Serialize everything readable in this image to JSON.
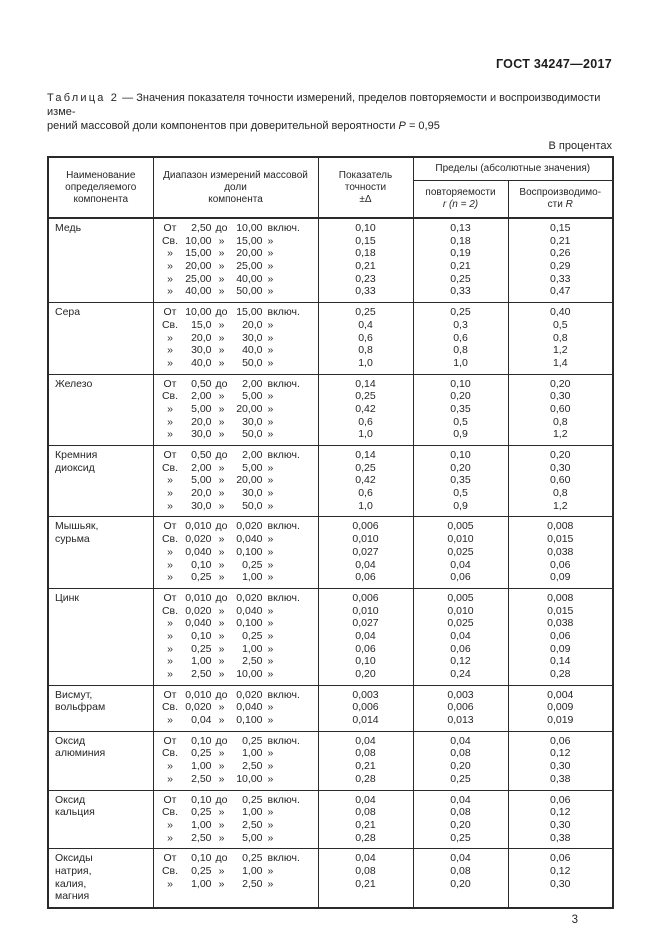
{
  "header": {
    "doc_number": "ГОСТ 34247—2017"
  },
  "caption": {
    "label": "Таблица 2",
    "line1": "— Значения показателя точности измерений, пределов повторяемости и воспроизводимости изме-",
    "line2": "рений массовой доли компонентов при доверительной вероятности",
    "p_symbol": "P",
    "p_value": "= 0,95"
  },
  "units_note": "В процентах",
  "page_number": "3",
  "table": {
    "headers": {
      "component": "Наименование\nопределяемого\nкомпонента",
      "range": "Диапазон измерений массовой доли\nкомпонента",
      "accuracy": "Показатель\nточности\n±Δ",
      "limits_group": "Пределы (абсолютные значения)",
      "repeatability_line1": "повторяемости",
      "repeatability_line2": "r (n = 2)",
      "reproducibility_text": "Воспроизводимо-\nсти",
      "reproducibility_symbol": "R"
    },
    "rows": [
      {
        "name": "Медь",
        "lines": [
          {
            "range": [
              "От",
              "2,50",
              "до",
              "10,00",
              "включ."
            ],
            "acc": "0,10",
            "rep": "0,13",
            "repr": "0,15"
          },
          {
            "range": [
              "Св.",
              "10,00",
              "»",
              "15,00",
              "»"
            ],
            "acc": "0,15",
            "rep": "0,18",
            "repr": "0,21"
          },
          {
            "range": [
              "»",
              "15,00",
              "»",
              "20,00",
              "»"
            ],
            "acc": "0,18",
            "rep": "0,19",
            "repr": "0,26"
          },
          {
            "range": [
              "»",
              "20,00",
              "»",
              "25,00",
              "»"
            ],
            "acc": "0,21",
            "rep": "0,21",
            "repr": "0,29"
          },
          {
            "range": [
              "»",
              "25,00",
              "»",
              "40,00",
              "»"
            ],
            "acc": "0,23",
            "rep": "0,25",
            "repr": "0,33"
          },
          {
            "range": [
              "»",
              "40,00",
              "»",
              "50,00",
              "»"
            ],
            "acc": "0,33",
            "rep": "0,33",
            "repr": "0,47"
          }
        ]
      },
      {
        "name": "Сера",
        "lines": [
          {
            "range": [
              "От",
              "10,00",
              "до",
              "15,00",
              "включ."
            ],
            "acc": "0,25",
            "rep": "0,25",
            "repr": "0,40"
          },
          {
            "range": [
              "Св.",
              "15,0",
              "»",
              "20,0",
              "»"
            ],
            "acc": "0,4",
            "rep": "0,3",
            "repr": "0,5"
          },
          {
            "range": [
              "»",
              "20,0",
              "»",
              "30,0",
              "»"
            ],
            "acc": "0,6",
            "rep": "0,6",
            "repr": "0,8"
          },
          {
            "range": [
              "»",
              "30,0",
              "»",
              "40,0",
              "»"
            ],
            "acc": "0,8",
            "rep": "0,8",
            "repr": "1,2"
          },
          {
            "range": [
              "»",
              "40,0",
              "»",
              "50,0",
              "»"
            ],
            "acc": "1,0",
            "rep": "1,0",
            "repr": "1,4"
          }
        ]
      },
      {
        "name": "Железо",
        "lines": [
          {
            "range": [
              "От",
              "0,50",
              "до",
              "2,00",
              "включ."
            ],
            "acc": "0,14",
            "rep": "0,10",
            "repr": "0,20"
          },
          {
            "range": [
              "Св.",
              "2,00",
              "»",
              "5,00",
              "»"
            ],
            "acc": "0,25",
            "rep": "0,20",
            "repr": "0,30"
          },
          {
            "range": [
              "»",
              "5,00",
              "»",
              "20,00",
              "»"
            ],
            "acc": "0,42",
            "rep": "0,35",
            "repr": "0,60"
          },
          {
            "range": [
              "»",
              "20,0",
              "»",
              "30,0",
              "»"
            ],
            "acc": "0,6",
            "rep": "0,5",
            "repr": "0,8"
          },
          {
            "range": [
              "»",
              "30,0",
              "»",
              "50,0",
              "»"
            ],
            "acc": "1,0",
            "rep": "0,9",
            "repr": "1,2"
          }
        ]
      },
      {
        "name": "Кремния\nдиоксид",
        "lines": [
          {
            "range": [
              "От",
              "0,50",
              "до",
              "2,00",
              "включ."
            ],
            "acc": "0,14",
            "rep": "0,10",
            "repr": "0,20"
          },
          {
            "range": [
              "Св.",
              "2,00",
              "»",
              "5,00",
              "»"
            ],
            "acc": "0,25",
            "rep": "0,20",
            "repr": "0,30"
          },
          {
            "range": [
              "»",
              "5,00",
              "»",
              "20,00",
              "»"
            ],
            "acc": "0,42",
            "rep": "0,35",
            "repr": "0,60"
          },
          {
            "range": [
              "»",
              "20,0",
              "»",
              "30,0",
              "»"
            ],
            "acc": "0,6",
            "rep": "0,5",
            "repr": "0,8"
          },
          {
            "range": [
              "»",
              "30,0",
              "»",
              "50,0",
              "»"
            ],
            "acc": "1,0",
            "rep": "0,9",
            "repr": "1,2"
          }
        ]
      },
      {
        "name": "Мышьяк,\nсурьма",
        "lines": [
          {
            "range": [
              "От",
              "0,010",
              "до",
              "0,020",
              "включ."
            ],
            "acc": "0,006",
            "rep": "0,005",
            "repr": "0,008"
          },
          {
            "range": [
              "Св.",
              "0,020",
              "»",
              "0,040",
              "»"
            ],
            "acc": "0,010",
            "rep": "0,010",
            "repr": "0,015"
          },
          {
            "range": [
              "»",
              "0,040",
              "»",
              "0,100",
              "»"
            ],
            "acc": "0,027",
            "rep": "0,025",
            "repr": "0,038"
          },
          {
            "range": [
              "»",
              "0,10",
              "»",
              "0,25",
              "»"
            ],
            "acc": "0,04",
            "rep": "0,04",
            "repr": "0,06"
          },
          {
            "range": [
              "»",
              "0,25",
              "»",
              "1,00",
              "»"
            ],
            "acc": "0,06",
            "rep": "0,06",
            "repr": "0,09"
          }
        ]
      },
      {
        "name": "Цинк",
        "lines": [
          {
            "range": [
              "От",
              "0,010",
              "до",
              "0,020",
              "включ."
            ],
            "acc": "0,006",
            "rep": "0,005",
            "repr": "0,008"
          },
          {
            "range": [
              "Св.",
              "0,020",
              "»",
              "0,040",
              "»"
            ],
            "acc": "0,010",
            "rep": "0,010",
            "repr": "0,015"
          },
          {
            "range": [
              "»",
              "0,040",
              "»",
              "0,100",
              "»"
            ],
            "acc": "0,027",
            "rep": "0,025",
            "repr": "0,038"
          },
          {
            "range": [
              "»",
              "0,10",
              "»",
              "0,25",
              "»"
            ],
            "acc": "0,04",
            "rep": "0,04",
            "repr": "0,06"
          },
          {
            "range": [
              "»",
              "0,25",
              "»",
              "1,00",
              "»"
            ],
            "acc": "0,06",
            "rep": "0,06",
            "repr": "0,09"
          },
          {
            "range": [
              "»",
              "1,00",
              "»",
              "2,50",
              "»"
            ],
            "acc": "0,10",
            "rep": "0,12",
            "repr": "0,14"
          },
          {
            "range": [
              "»",
              "2,50",
              "»",
              "10,00",
              "»"
            ],
            "acc": "0,20",
            "rep": "0,24",
            "repr": "0,28"
          }
        ]
      },
      {
        "name": "Висмут,\nвольфрам",
        "lines": [
          {
            "range": [
              "От",
              "0,010",
              "до",
              "0,020",
              "включ."
            ],
            "acc": "0,003",
            "rep": "0,003",
            "repr": "0,004"
          },
          {
            "range": [
              "Св.",
              "0,020",
              "»",
              "0,040",
              "»"
            ],
            "acc": "0,006",
            "rep": "0,006",
            "repr": "0,009"
          },
          {
            "range": [
              "»",
              "0,04",
              "»",
              "0,100",
              "»"
            ],
            "acc": "0,014",
            "rep": "0,013",
            "repr": "0,019"
          }
        ]
      },
      {
        "name": "Оксид\nалюминия",
        "lines": [
          {
            "range": [
              "От",
              "0,10",
              "до",
              "0,25",
              "включ."
            ],
            "acc": "0,04",
            "rep": "0,04",
            "repr": "0,06"
          },
          {
            "range": [
              "Св.",
              "0,25",
              "»",
              "1,00",
              "»"
            ],
            "acc": "0,08",
            "rep": "0,08",
            "repr": "0,12"
          },
          {
            "range": [
              "»",
              "1,00",
              "»",
              "2,50",
              "»"
            ],
            "acc": "0,21",
            "rep": "0,20",
            "repr": "0,30"
          },
          {
            "range": [
              "»",
              "2,50",
              "»",
              "10,00",
              "»"
            ],
            "acc": "0,28",
            "rep": "0,25",
            "repr": "0,38"
          }
        ]
      },
      {
        "name": "Оксид\nкальция",
        "lines": [
          {
            "range": [
              "От",
              "0,10",
              "до",
              "0,25",
              "включ."
            ],
            "acc": "0,04",
            "rep": "0,04",
            "repr": "0,06"
          },
          {
            "range": [
              "Св.",
              "0,25",
              "»",
              "1,00",
              "»"
            ],
            "acc": "0,08",
            "rep": "0,08",
            "repr": "0,12"
          },
          {
            "range": [
              "»",
              "1,00",
              "»",
              "2,50",
              "»"
            ],
            "acc": "0,21",
            "rep": "0,20",
            "repr": "0,30"
          },
          {
            "range": [
              "»",
              "2,50",
              "»",
              "5,00",
              "»"
            ],
            "acc": "0,28",
            "rep": "0,25",
            "repr": "0,38"
          }
        ]
      },
      {
        "name": "Оксиды\nнатрия,\nкалия,\nмагния",
        "lines": [
          {
            "range": [
              "От",
              "0,10",
              "до",
              "0,25",
              "включ."
            ],
            "acc": "0,04",
            "rep": "0,04",
            "repr": "0,06"
          },
          {
            "range": [
              "Св.",
              "0,25",
              "»",
              "1,00",
              "»"
            ],
            "acc": "0,08",
            "rep": "0,08",
            "repr": "0,12"
          },
          {
            "range": [
              "»",
              "1,00",
              "»",
              "2,50",
              "»"
            ],
            "acc": "0,21",
            "rep": "0,20",
            "repr": "0,30"
          }
        ]
      }
    ]
  }
}
